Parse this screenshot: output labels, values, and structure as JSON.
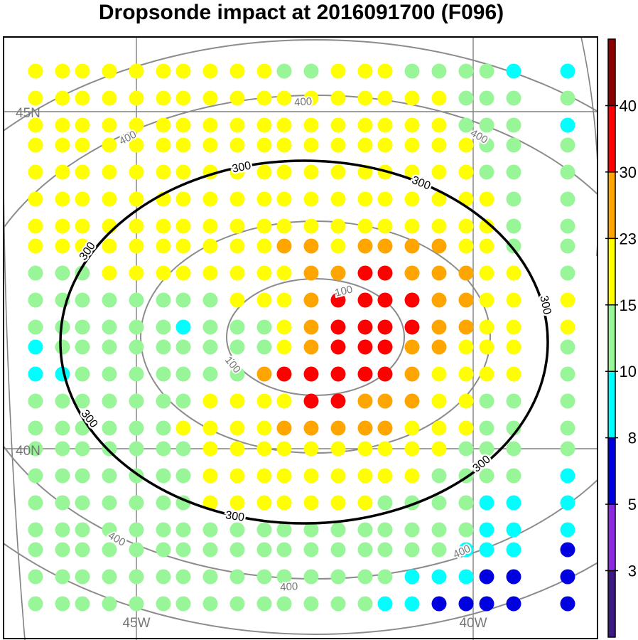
{
  "title": "Dropsonde impact at 2016091700 (F096)",
  "map": {
    "lat_labels": [
      {
        "value": 45,
        "text": "45N"
      },
      {
        "value": 40,
        "text": "40N"
      }
    ],
    "lon_labels": [
      {
        "value": -45,
        "text": "45W"
      },
      {
        "value": -40,
        "text": "40W"
      }
    ]
  },
  "colorbar": {
    "bounds": [
      3,
      5,
      8,
      10,
      15,
      23,
      30,
      40
    ],
    "colors": [
      "#3d1a82",
      "#8a2be2",
      "#0000e0",
      "#00ffff",
      "#98f598",
      "#ffff00",
      "#ffa500",
      "#ff0000",
      "#8b0000"
    ]
  },
  "contour_labels": {
    "ring_100": "100",
    "ring_300": "300",
    "ring_400": "400"
  },
  "grid_values": [
    [
      17,
      17,
      17,
      17,
      17,
      17,
      17,
      17,
      17,
      17,
      13,
      13,
      17,
      17,
      17,
      13,
      13,
      13,
      13,
      9,
      9
    ],
    [
      17,
      17,
      17,
      17,
      17,
      17,
      17,
      17,
      17,
      17,
      17,
      17,
      17,
      17,
      17,
      17,
      17,
      13,
      13,
      13,
      13
    ],
    [
      17,
      17,
      17,
      17,
      17,
      17,
      17,
      17,
      17,
      17,
      17,
      17,
      17,
      17,
      17,
      17,
      17,
      13,
      13,
      13,
      9
    ],
    [
      17,
      17,
      17,
      17,
      17,
      17,
      17,
      17,
      17,
      17,
      17,
      17,
      17,
      17,
      17,
      17,
      17,
      17,
      13,
      13,
      13
    ],
    [
      17,
      17,
      17,
      17,
      17,
      17,
      17,
      17,
      17,
      17,
      17,
      17,
      17,
      17,
      17,
      17,
      17,
      17,
      13,
      13,
      13
    ],
    [
      17,
      17,
      17,
      17,
      17,
      17,
      17,
      17,
      17,
      17,
      17,
      17,
      17,
      17,
      17,
      17,
      17,
      17,
      17,
      13,
      13
    ],
    [
      17,
      17,
      17,
      17,
      17,
      17,
      17,
      17,
      17,
      17,
      17,
      17,
      17,
      17,
      17,
      17,
      17,
      17,
      17,
      13,
      13
    ],
    [
      17,
      17,
      17,
      17,
      17,
      17,
      17,
      17,
      17,
      17,
      26,
      26,
      17,
      26,
      26,
      26,
      26,
      17,
      17,
      13,
      13
    ],
    [
      13,
      13,
      13,
      17,
      17,
      17,
      17,
      17,
      17,
      17,
      17,
      26,
      26,
      35,
      35,
      26,
      26,
      26,
      17,
      17,
      13
    ],
    [
      13,
      13,
      13,
      13,
      13,
      13,
      13,
      13,
      17,
      17,
      17,
      26,
      35,
      35,
      35,
      35,
      26,
      26,
      17,
      17,
      17
    ],
    [
      13,
      13,
      13,
      13,
      13,
      13,
      9,
      13,
      13,
      13,
      17,
      26,
      35,
      35,
      35,
      35,
      26,
      26,
      17,
      17,
      17
    ],
    [
      9,
      13,
      13,
      13,
      13,
      13,
      13,
      13,
      13,
      13,
      17,
      26,
      35,
      35,
      35,
      26,
      26,
      17,
      17,
      17,
      13
    ],
    [
      9,
      9,
      13,
      13,
      13,
      13,
      13,
      13,
      13,
      26,
      35,
      35,
      35,
      35,
      35,
      26,
      17,
      17,
      17,
      17,
      13
    ],
    [
      13,
      13,
      13,
      13,
      13,
      13,
      13,
      17,
      17,
      17,
      17,
      35,
      35,
      26,
      26,
      26,
      17,
      17,
      13,
      13,
      13
    ],
    [
      13,
      13,
      13,
      13,
      13,
      13,
      17,
      17,
      17,
      17,
      26,
      26,
      26,
      26,
      26,
      17,
      17,
      17,
      13,
      13,
      13
    ],
    [
      13,
      13,
      13,
      13,
      13,
      13,
      13,
      17,
      17,
      17,
      17,
      17,
      17,
      17,
      17,
      17,
      17,
      13,
      13,
      13,
      13
    ],
    [
      13,
      13,
      13,
      13,
      13,
      13,
      13,
      17,
      17,
      17,
      17,
      17,
      17,
      17,
      17,
      17,
      13,
      13,
      13,
      13,
      9
    ],
    [
      13,
      13,
      13,
      13,
      13,
      13,
      13,
      17,
      17,
      17,
      17,
      17,
      17,
      17,
      13,
      13,
      13,
      13,
      9,
      9,
      9
    ],
    [
      13,
      13,
      13,
      13,
      13,
      13,
      13,
      13,
      13,
      13,
      13,
      13,
      13,
      13,
      13,
      13,
      13,
      13,
      9,
      9,
      9
    ],
    [
      13,
      13,
      13,
      13,
      13,
      13,
      13,
      13,
      13,
      13,
      13,
      13,
      13,
      13,
      13,
      13,
      13,
      9,
      9,
      9,
      6
    ],
    [
      13,
      13,
      13,
      13,
      13,
      13,
      13,
      13,
      13,
      13,
      13,
      13,
      13,
      13,
      13,
      9,
      9,
      9,
      6,
      6,
      6
    ],
    [
      13,
      13,
      13,
      13,
      13,
      13,
      13,
      13,
      13,
      13,
      13,
      13,
      13,
      13,
      9,
      9,
      6,
      6,
      6,
      6,
      6
    ]
  ]
}
